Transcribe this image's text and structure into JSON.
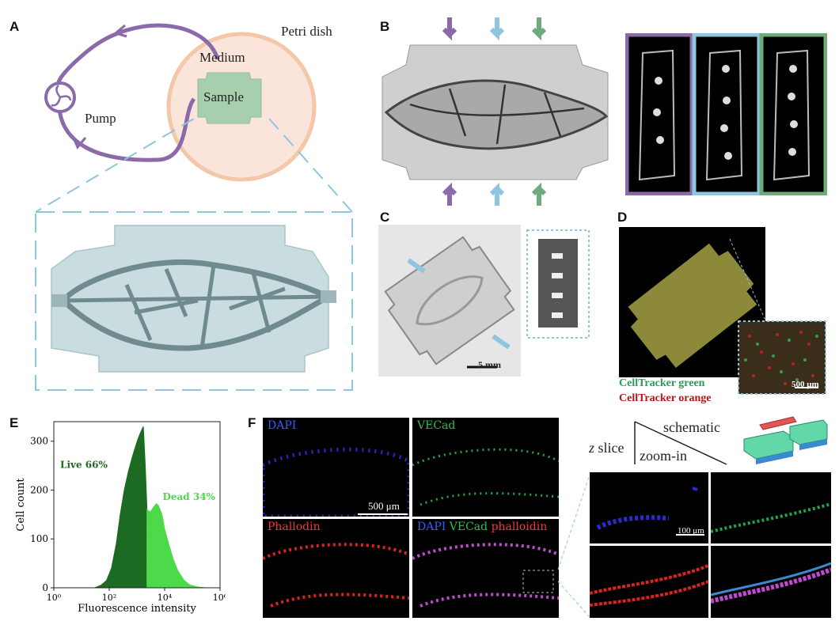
{
  "panels": {
    "A": {
      "letter": "A",
      "labels": {
        "petri": "Petri dish",
        "medium": "Medium",
        "sample": "Sample",
        "pump": "Pump"
      }
    },
    "B": {
      "letter": "B"
    },
    "C": {
      "letter": "C",
      "scalebar": "5 mm"
    },
    "D": {
      "letter": "D",
      "scalebar": "500 μm",
      "legend_green": "CellTracker green",
      "legend_orange": "CellTracker orange",
      "green_color": "#22a050",
      "orange_color": "#b5141a"
    },
    "E": {
      "letter": "E"
    },
    "F": {
      "letter": "F",
      "channels": {
        "dapi": "DAPI",
        "vecad": "VECad",
        "phallodin": "Phallodin"
      },
      "merge": {
        "dapi": "DAPI",
        "vecad": "VECad",
        "phalloidin": "phalloidin"
      },
      "scalebar_large": "500 μm",
      "scalebar_small": "100 μm",
      "schematic": {
        "z": "z",
        "slice": " slice",
        "schematic": "schematic",
        "zoom": "zoom-in"
      }
    }
  },
  "chart_data": {
    "type": "area",
    "title": "",
    "xlabel": "Fluorescence intensity",
    "ylabel": "Cell count",
    "x_scale": "log",
    "xlim": [
      1,
      1000000
    ],
    "ylim": [
      0,
      340
    ],
    "x_ticks": [
      1,
      100,
      10000,
      1000000
    ],
    "x_tick_labels": [
      "10⁰",
      "10²",
      "10⁴",
      "10⁶"
    ],
    "y_ticks": [
      0,
      100,
      200,
      300
    ],
    "y_tick_labels": [
      "0",
      "100",
      "200",
      "300"
    ],
    "series": [
      {
        "name": "Live 66%",
        "color": "#1d6b22",
        "x": [
          30,
          50,
          80,
          120,
          180,
          250,
          350,
          500,
          700,
          900,
          1100,
          1400,
          1700,
          2000,
          2300
        ],
        "y": [
          0,
          5,
          15,
          40,
          90,
          150,
          200,
          240,
          270,
          290,
          305,
          320,
          330,
          250,
          160
        ]
      },
      {
        "name": "Dead 34%",
        "color": "#4cd94a",
        "x": [
          2300,
          3000,
          4000,
          5000,
          6000,
          8000,
          10000,
          14000,
          20000,
          30000,
          50000,
          80000,
          150000,
          300000
        ],
        "y": [
          160,
          155,
          165,
          172,
          168,
          150,
          120,
          90,
          60,
          35,
          15,
          6,
          2,
          0
        ]
      }
    ]
  }
}
